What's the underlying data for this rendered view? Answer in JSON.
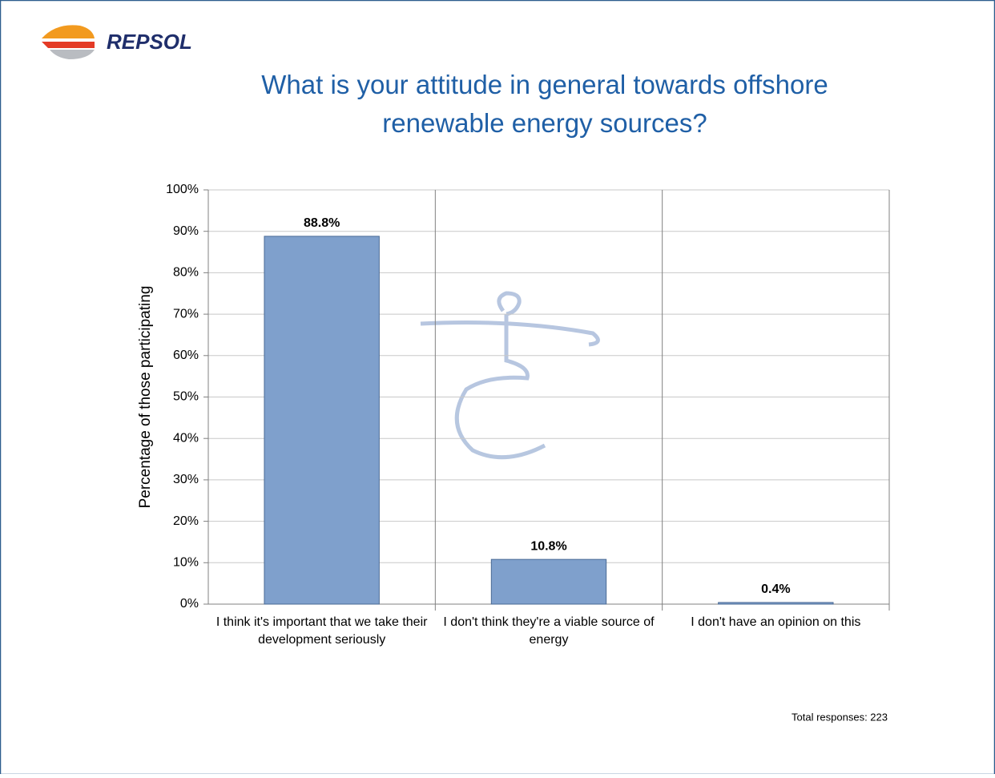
{
  "header": {
    "logo": "REPSOL"
  },
  "chart_data": {
    "type": "bar",
    "title": "What is your attitude in general towards offshore renewable energy sources?",
    "y_label": "Percentage of those participating",
    "categories": [
      "I think it's important that we take their development seriously",
      "I don't think they're a viable source of energy",
      "I don't have an opinion on this"
    ],
    "values": [
      88.8,
      10.8,
      0.4
    ],
    "value_labels": [
      "88.8%",
      "10.8%",
      "0.4%"
    ],
    "color": "#7fa0cc",
    "ylim": [
      0,
      100
    ],
    "yticks": [
      {
        "value": 0,
        "label": "0%"
      },
      {
        "value": 10,
        "label": "10%"
      },
      {
        "value": 20,
        "label": "20%"
      },
      {
        "value": 30,
        "label": "30%"
      },
      {
        "value": 40,
        "label": "40%"
      },
      {
        "value": 50,
        "label": "50%"
      },
      {
        "value": 60,
        "label": "60%"
      },
      {
        "value": 70,
        "label": "70%"
      },
      {
        "value": 80,
        "label": "80%"
      },
      {
        "value": 90,
        "label": "90%"
      },
      {
        "value": 100,
        "label": "100%"
      }
    ],
    "grid": true,
    "footnote": "Total responses: 223"
  }
}
